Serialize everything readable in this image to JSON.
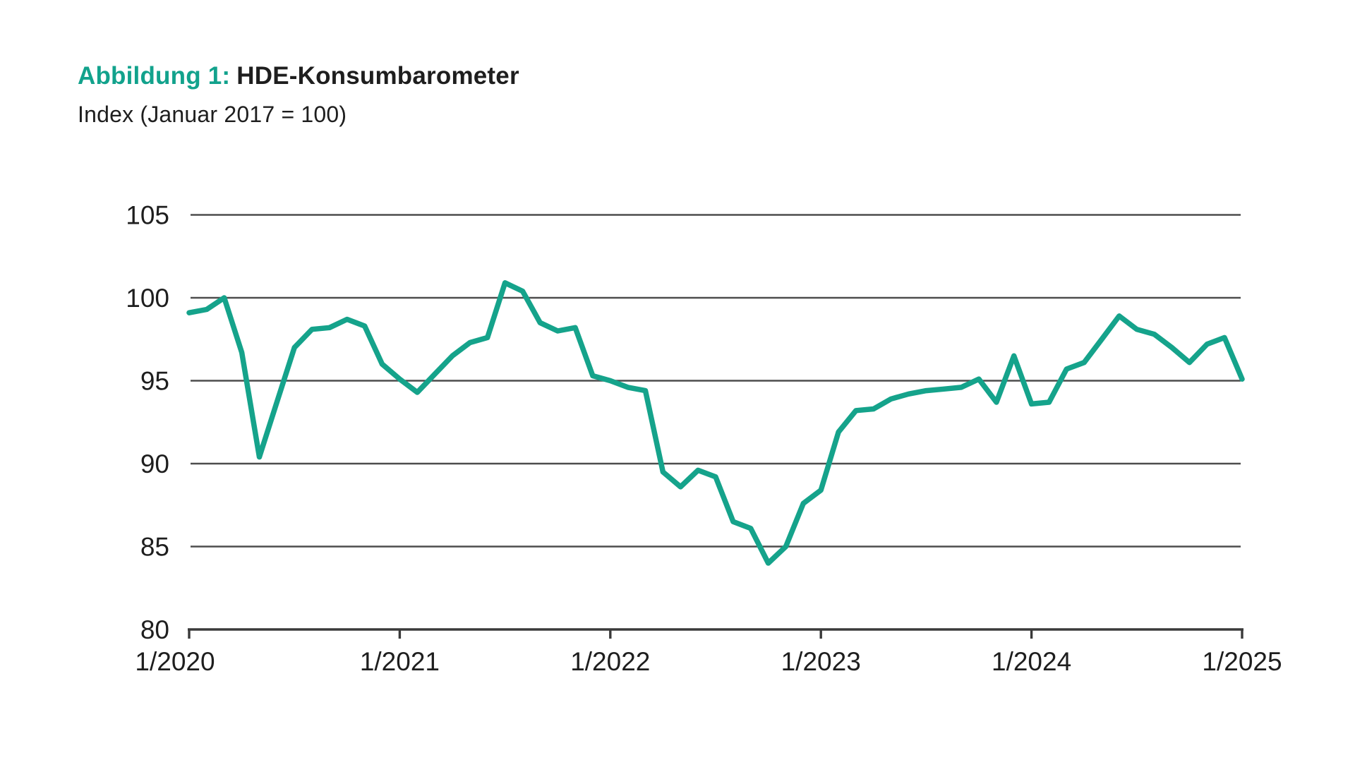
{
  "figure": {
    "label": "Abbildung 1:",
    "title": "HDE-Konsumbarometer",
    "subtitle": "Index (Januar 2017 = 100)"
  },
  "colors": {
    "accent_teal": "#12a28c",
    "line": "#15a38b",
    "grid": "#4d4d4d",
    "axis": "#3a3a3a",
    "text": "#1e1e1e"
  },
  "chart_data": {
    "type": "line",
    "title": "HDE-Konsumbarometer",
    "subtitle": "Index (Januar 2017 = 100)",
    "x_frequency": "monthly",
    "x_start_month": "1/2020",
    "x_end_month": "1/2025",
    "x_tick_labels": [
      "1/2020",
      "1/2021",
      "1/2022",
      "1/2023",
      "1/2024",
      "1/2025"
    ],
    "y_ticks": [
      80,
      85,
      90,
      95,
      100,
      105
    ],
    "ylim": [
      80,
      105
    ],
    "grid": "horizontal-only",
    "legend": "none",
    "series": [
      {
        "name": "HDE-Konsumbarometer",
        "values": [
          99.1,
          99.3,
          100.0,
          96.7,
          90.4,
          93.7,
          97.0,
          98.1,
          98.2,
          98.7,
          98.3,
          96.0,
          95.1,
          94.3,
          95.4,
          96.5,
          97.3,
          97.6,
          100.9,
          100.4,
          98.5,
          98.0,
          98.2,
          95.3,
          95.0,
          94.6,
          94.4,
          89.5,
          88.6,
          89.6,
          89.2,
          86.5,
          86.1,
          84.0,
          85.0,
          87.6,
          88.4,
          91.9,
          93.2,
          93.3,
          93.9,
          94.2,
          94.4,
          94.5,
          94.6,
          95.1,
          93.7,
          96.5,
          93.6,
          93.7,
          95.7,
          96.1,
          97.5,
          98.9,
          98.1,
          97.8,
          97.0,
          96.1,
          97.2,
          97.6,
          95.1
        ]
      }
    ]
  }
}
